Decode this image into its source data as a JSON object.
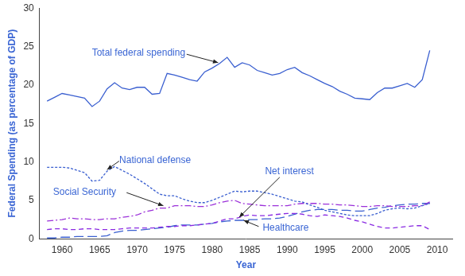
{
  "chart_data": {
    "type": "line",
    "x_label": "Year",
    "y_label": "Federal Spending (as percentage of GDP)",
    "x": [
      1958,
      1959,
      1960,
      1961,
      1962,
      1963,
      1964,
      1965,
      1966,
      1967,
      1968,
      1969,
      1970,
      1971,
      1972,
      1973,
      1974,
      1975,
      1976,
      1977,
      1978,
      1979,
      1980,
      1981,
      1982,
      1983,
      1984,
      1985,
      1986,
      1987,
      1988,
      1989,
      1990,
      1991,
      1992,
      1993,
      1994,
      1995,
      1996,
      1997,
      1998,
      1999,
      2000,
      2001,
      2002,
      2003,
      2004,
      2005,
      2006,
      2007,
      2008,
      2009
    ],
    "series": [
      {
        "name": "Total federal spending",
        "color": "#3a5fd0",
        "line_style": "solid",
        "values": [
          17.9,
          18.4,
          18.9,
          18.7,
          18.5,
          18.3,
          17.2,
          17.9,
          19.5,
          20.3,
          19.6,
          19.4,
          19.7,
          19.7,
          18.8,
          18.9,
          21.5,
          21.3,
          21.0,
          20.7,
          20.5,
          21.7,
          22.2,
          22.8,
          23.6,
          22.3,
          22.9,
          22.6,
          21.9,
          21.6,
          21.3,
          21.5,
          22.0,
          22.3,
          21.6,
          21.2,
          20.7,
          20.2,
          19.8,
          19.2,
          18.8,
          18.3,
          18.2,
          18.1,
          19.0,
          19.6,
          19.6,
          19.9,
          20.2,
          19.7,
          20.7,
          24.5
        ]
      },
      {
        "name": "National defense",
        "color": "#3a5fd0",
        "line_style": "dotted",
        "values": [
          9.3,
          9.3,
          9.3,
          9.2,
          8.9,
          8.6,
          7.5,
          7.6,
          8.8,
          9.4,
          8.9,
          8.4,
          7.8,
          7.2,
          6.5,
          5.8,
          5.6,
          5.6,
          5.2,
          4.9,
          4.7,
          4.7,
          5.0,
          5.4,
          5.8,
          6.2,
          6.1,
          6.2,
          6.2,
          6.0,
          5.8,
          5.5,
          5.2,
          4.9,
          4.8,
          4.4,
          4.1,
          3.7,
          3.5,
          3.3,
          3.1,
          3.0,
          3.0,
          3.0,
          3.3,
          3.7,
          3.9,
          4.0,
          3.9,
          4.0,
          4.3,
          4.6
        ]
      },
      {
        "name": "Social Security",
        "color": "#9b30d9",
        "line_style": "dashdot",
        "values": [
          2.3,
          2.4,
          2.5,
          2.7,
          2.6,
          2.6,
          2.5,
          2.5,
          2.6,
          2.6,
          2.8,
          2.9,
          3.1,
          3.5,
          3.7,
          4.0,
          4.0,
          4.3,
          4.3,
          4.3,
          4.2,
          4.2,
          4.4,
          4.7,
          4.9,
          5.0,
          4.6,
          4.5,
          4.4,
          4.3,
          4.3,
          4.3,
          4.3,
          4.5,
          4.6,
          4.6,
          4.6,
          4.5,
          4.5,
          4.4,
          4.4,
          4.3,
          4.2,
          4.2,
          4.3,
          4.3,
          4.2,
          4.2,
          4.2,
          4.3,
          4.3,
          4.8
        ]
      },
      {
        "name": "Net interest",
        "color": "#8a2be2",
        "line_style": "dashed",
        "values": [
          1.2,
          1.3,
          1.3,
          1.2,
          1.2,
          1.3,
          1.3,
          1.2,
          1.2,
          1.2,
          1.3,
          1.4,
          1.4,
          1.4,
          1.4,
          1.5,
          1.6,
          1.6,
          1.7,
          1.7,
          1.8,
          1.9,
          2.0,
          2.3,
          2.6,
          2.6,
          2.9,
          3.1,
          3.0,
          3.0,
          3.1,
          3.2,
          3.3,
          3.3,
          3.2,
          3.0,
          2.9,
          3.1,
          3.0,
          2.9,
          2.7,
          2.4,
          2.2,
          1.9,
          1.6,
          1.4,
          1.4,
          1.5,
          1.6,
          1.7,
          1.7,
          1.2
        ]
      },
      {
        "name": "Healthcare",
        "color": "#3a5fd0",
        "line_style": "longdash",
        "values": [
          0.1,
          0.1,
          0.2,
          0.2,
          0.3,
          0.3,
          0.3,
          0.3,
          0.4,
          0.8,
          1.0,
          1.1,
          1.1,
          1.2,
          1.3,
          1.4,
          1.5,
          1.7,
          1.8,
          1.8,
          1.8,
          1.9,
          2.0,
          2.2,
          2.3,
          2.4,
          2.4,
          2.5,
          2.5,
          2.6,
          2.6,
          2.7,
          2.9,
          3.2,
          3.5,
          3.7,
          3.8,
          3.8,
          3.8,
          3.7,
          3.7,
          3.6,
          3.6,
          3.8,
          4.0,
          4.1,
          4.3,
          4.4,
          4.5,
          4.5,
          4.6,
          4.6
        ]
      }
    ],
    "xlim": [
      1957,
      2012
    ],
    "xticks": [
      1960,
      1965,
      1970,
      1975,
      1980,
      1985,
      1990,
      1995,
      2000,
      2005,
      2010
    ],
    "ylim": [
      0,
      30
    ],
    "yticks": [
      0,
      5,
      10,
      15,
      20,
      25,
      30
    ],
    "grid": false
  }
}
